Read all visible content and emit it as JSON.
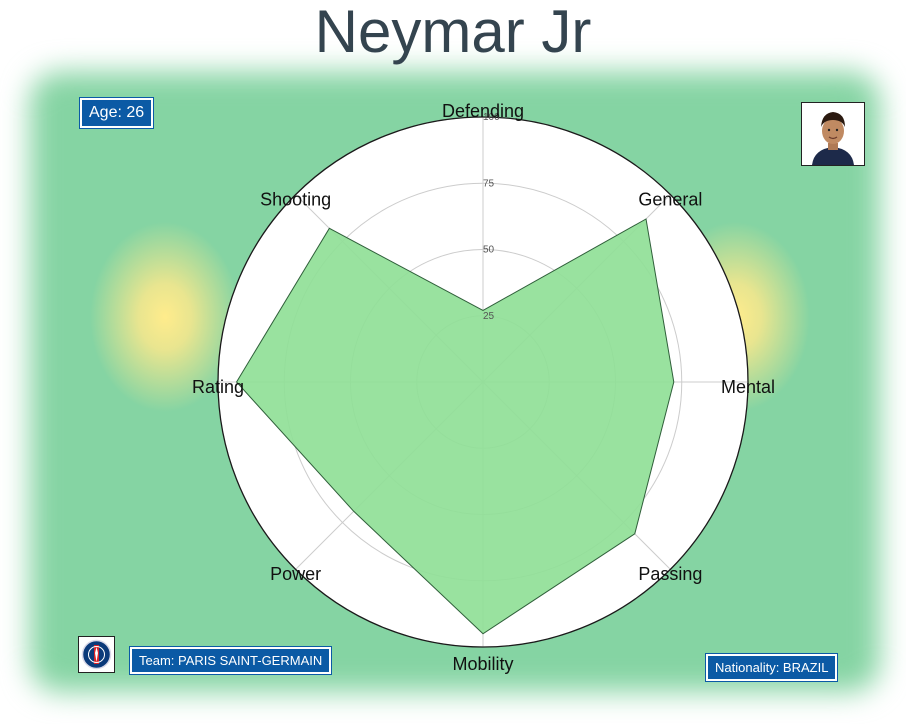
{
  "title": "Neymar Jr",
  "age_label": "Age: 26",
  "team_label": "Team: PARIS SAINT-GERMAIN",
  "nationality_label": "Nationality: BRAZIL",
  "colors": {
    "title": "#34444f",
    "badge": "#0b5aa5",
    "background_field": "#85d4a3",
    "glow": "#ffe98c",
    "radar_fill": "#90e097",
    "radar_edge": "#2f5f3a",
    "grid": "#cccccc"
  },
  "chart_data": {
    "type": "radar",
    "title": "Neymar Jr",
    "categories": [
      "Defending",
      "General",
      "Mental",
      "Passing",
      "Mobility",
      "Power",
      "Rating",
      "Shooting"
    ],
    "values": [
      27,
      87,
      72,
      81,
      95,
      69,
      93,
      82
    ],
    "rlim": [
      0,
      100
    ],
    "rticks": [
      25,
      50,
      75,
      100
    ],
    "grid": true
  }
}
